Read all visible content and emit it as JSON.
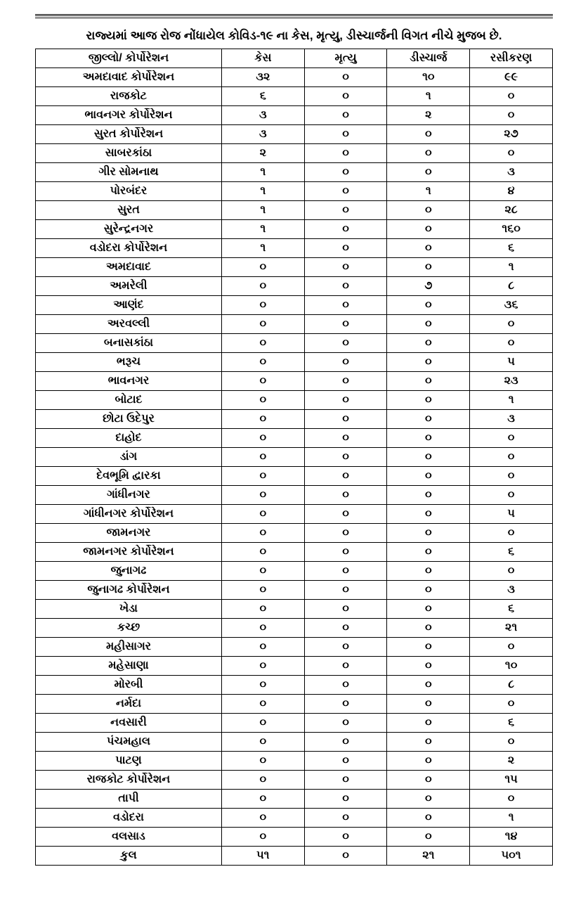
{
  "title": "રાજ્યમાં આજ રોજ નોંધાયેલ કોવિડ-૧૯ ના કેસ, મૃત્યુ, ડીસ્ચાર્જની વિગત નીચે મુજબ છે.",
  "table": {
    "columns": [
      "જીલ્લો/ કોર્પોરેશન",
      "કેસ",
      "મૃત્યુ",
      "ડીસ્ચાર્જ",
      "રસીકરણ"
    ],
    "rows": [
      [
        "અમદાવાદ કોર્પોરેશન",
        "૩૨",
        "૦",
        "૧૦",
        "૯૯"
      ],
      [
        "રાજકોટ",
        "૬",
        "૦",
        "૧",
        "૦"
      ],
      [
        "ભાવનગર કોર્પોરેશન",
        "૩",
        "૦",
        "૨",
        "૦"
      ],
      [
        "સુરત કોર્પોરેશન",
        "૩",
        "૦",
        "૦",
        "૨૭"
      ],
      [
        "સાબરકાંઠા",
        "૨",
        "૦",
        "૦",
        "૦"
      ],
      [
        "ગીર સોમનાથ",
        "૧",
        "૦",
        "૦",
        "૩"
      ],
      [
        "પોરબંદર",
        "૧",
        "૦",
        "૧",
        "૪"
      ],
      [
        "સુરત",
        "૧",
        "૦",
        "૦",
        "૨૮"
      ],
      [
        "સુરેન્દ્રનગર",
        "૧",
        "૦",
        "૦",
        "૧૬૦"
      ],
      [
        "વડોદરા કોર્પોરેશન",
        "૧",
        "૦",
        "૦",
        "૬"
      ],
      [
        "અમદાવાદ",
        "૦",
        "૦",
        "૦",
        "૧"
      ],
      [
        "અમરેલી",
        "૦",
        "૦",
        "૭",
        "૮"
      ],
      [
        "આણંદ",
        "૦",
        "૦",
        "૦",
        "૩૬"
      ],
      [
        "અરવલ્લી",
        "૦",
        "૦",
        "૦",
        "૦"
      ],
      [
        "બનાસકાંઠા",
        "૦",
        "૦",
        "૦",
        "૦"
      ],
      [
        "ભરૂચ",
        "૦",
        "૦",
        "૦",
        "૫"
      ],
      [
        "ભાવનગર",
        "૦",
        "૦",
        "૦",
        "૨૩"
      ],
      [
        "બોટાદ",
        "૦",
        "૦",
        "૦",
        "૧"
      ],
      [
        "છોટા ઉદેપુર",
        "૦",
        "૦",
        "૦",
        "૩"
      ],
      [
        "દાહોદ",
        "૦",
        "૦",
        "૦",
        "૦"
      ],
      [
        "ડાંગ",
        "૦",
        "૦",
        "૦",
        "૦"
      ],
      [
        "દેવભૂમિ દ્વારકા",
        "૦",
        "૦",
        "૦",
        "૦"
      ],
      [
        "ગાંધીનગર",
        "૦",
        "૦",
        "૦",
        "૦"
      ],
      [
        "ગાંધીનગર કોર્પોરેશન",
        "૦",
        "૦",
        "૦",
        "૫"
      ],
      [
        "જામનગર",
        "૦",
        "૦",
        "૦",
        "૦"
      ],
      [
        "જામનગર કોર્પોરેશન",
        "૦",
        "૦",
        "૦",
        "૬"
      ],
      [
        "જુનાગઢ",
        "૦",
        "૦",
        "૦",
        "૦"
      ],
      [
        "જુનાગઢ કોર્પોરેશન",
        "૦",
        "૦",
        "૦",
        "૩"
      ],
      [
        "ખેડા",
        "૦",
        "૦",
        "૦",
        "૬"
      ],
      [
        "કચ્છ",
        "૦",
        "૦",
        "૦",
        "૨૧"
      ],
      [
        "મહીસાગર",
        "૦",
        "૦",
        "૦",
        "૦"
      ],
      [
        "મહેસાણા",
        "૦",
        "૦",
        "૦",
        "૧૦"
      ],
      [
        "મોરબી",
        "૦",
        "૦",
        "૦",
        "૮"
      ],
      [
        "નર્મદા",
        "૦",
        "૦",
        "૦",
        "૦"
      ],
      [
        "નવસારી",
        "૦",
        "૦",
        "૦",
        "૬"
      ],
      [
        "પંચમહાલ",
        "૦",
        "૦",
        "૦",
        "૦"
      ],
      [
        "પાટણ",
        "૦",
        "૦",
        "૦",
        "૨"
      ],
      [
        "રાજકોટ કોર્પોરેશન",
        "૦",
        "૦",
        "૦",
        "૧૫"
      ],
      [
        "તાપી",
        "૦",
        "૦",
        "૦",
        "૦"
      ],
      [
        "વડોદરા",
        "૦",
        "૦",
        "૦",
        "૧"
      ],
      [
        "વલસાડ",
        "૦",
        "૦",
        "૦",
        "૧૪"
      ],
      [
        "કુલ",
        "૫૧",
        "૦",
        "૨૧",
        "૫૦૧"
      ]
    ],
    "border_color": "#000000",
    "background_color": "#ffffff",
    "text_color": "#000000",
    "header_fontsize": 16,
    "cell_fontsize": 16,
    "column_widths": [
      "36%",
      "16%",
      "16%",
      "16%",
      "16%"
    ]
  }
}
